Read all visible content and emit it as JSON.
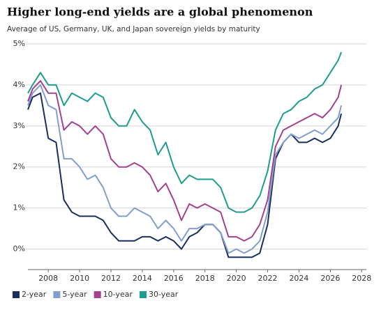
{
  "chart_data": {
    "type": "line",
    "title": "Higher long-end yields are a global phenomenon",
    "subtitle": "Average of US, Germany, UK, and Japan sovereign yields by maturity",
    "x": [
      2006.7,
      2007,
      2007.5,
      2008,
      2008.5,
      2009,
      2009.5,
      2010,
      2010.5,
      2011,
      2011.5,
      2012,
      2012.5,
      2013,
      2013.5,
      2014,
      2014.5,
      2015,
      2015.5,
      2016,
      2016.5,
      2017,
      2017.5,
      2018,
      2018.5,
      2019,
      2019.5,
      2020,
      2020.5,
      2021,
      2021.5,
      2022,
      2022.5,
      2023,
      2023.5,
      2024,
      2024.5,
      2025,
      2025.5,
      2026,
      2026.5,
      2026.7
    ],
    "series": [
      {
        "name": "2-year",
        "color": "#1a2e5c",
        "values": [
          3.4,
          3.7,
          3.8,
          2.7,
          2.6,
          1.2,
          0.9,
          0.8,
          0.8,
          0.8,
          0.7,
          0.4,
          0.2,
          0.2,
          0.2,
          0.3,
          0.3,
          0.2,
          0.3,
          0.2,
          0.0,
          0.3,
          0.4,
          0.6,
          0.6,
          0.4,
          -0.2,
          -0.2,
          -0.2,
          -0.2,
          -0.1,
          0.6,
          2.2,
          2.6,
          2.8,
          2.6,
          2.6,
          2.7,
          2.6,
          2.7,
          3.0,
          3.3
        ]
      },
      {
        "name": "5-year",
        "color": "#819ecf",
        "values": [
          3.5,
          3.8,
          4.0,
          3.5,
          3.4,
          2.2,
          2.2,
          2.0,
          1.7,
          1.8,
          1.5,
          1.0,
          0.8,
          0.8,
          1.0,
          0.9,
          0.8,
          0.5,
          0.7,
          0.5,
          0.2,
          0.5,
          0.5,
          0.6,
          0.6,
          0.4,
          -0.1,
          0.0,
          -0.1,
          0.0,
          0.2,
          0.9,
          2.3,
          2.6,
          2.8,
          2.7,
          2.8,
          2.9,
          2.8,
          3.0,
          3.2,
          3.5
        ]
      },
      {
        "name": "10-year",
        "color": "#a3418f",
        "values": [
          3.6,
          3.9,
          4.1,
          3.8,
          3.8,
          2.9,
          3.1,
          3.0,
          2.8,
          3.0,
          2.8,
          2.2,
          2.0,
          2.0,
          2.1,
          2.0,
          1.8,
          1.4,
          1.6,
          1.2,
          0.7,
          1.1,
          1.0,
          1.1,
          1.0,
          0.9,
          0.3,
          0.3,
          0.2,
          0.3,
          0.6,
          1.2,
          2.5,
          2.9,
          3.0,
          3.1,
          3.2,
          3.3,
          3.2,
          3.4,
          3.7,
          4.0
        ]
      },
      {
        "name": "30-year",
        "color": "#1e9c8e",
        "values": [
          3.8,
          4.0,
          4.3,
          4.0,
          4.0,
          3.5,
          3.8,
          3.7,
          3.6,
          3.8,
          3.7,
          3.2,
          3.0,
          3.0,
          3.4,
          3.1,
          2.9,
          2.3,
          2.6,
          2.0,
          1.6,
          1.8,
          1.7,
          1.7,
          1.7,
          1.5,
          1.0,
          0.9,
          0.9,
          1.0,
          1.3,
          1.9,
          2.9,
          3.3,
          3.4,
          3.6,
          3.7,
          3.9,
          4.0,
          4.3,
          4.6,
          4.8
        ]
      }
    ],
    "xlim": [
      2006.7,
      2028.3
    ],
    "xticks": [
      2008,
      2010,
      2012,
      2014,
      2016,
      2018,
      2020,
      2022,
      2024,
      2026,
      2028
    ],
    "ylim": [
      -0.5,
      5
    ],
    "yticks": [
      {
        "value": 0,
        "label": "0%"
      },
      {
        "value": 1,
        "label": "1%"
      },
      {
        "value": 2,
        "label": "2%"
      },
      {
        "value": 3,
        "label": "3%"
      },
      {
        "value": 4,
        "label": "4%"
      },
      {
        "value": 5,
        "label": "5%"
      }
    ],
    "grid": true,
    "legend": "bottom-left"
  }
}
